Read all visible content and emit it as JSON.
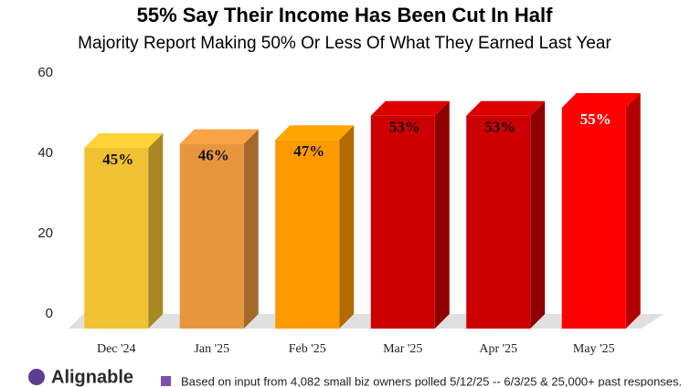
{
  "chart_data": {
    "type": "bar3d",
    "title": "55% Say Their Income Has Been Cut In Half",
    "subtitle": "Majority Report Making 50% Or Less Of What They Earned Last Year",
    "categories": [
      "Dec '24",
      "Jan '25",
      "Feb '25",
      "Mar '25",
      "Apr '25",
      "May '25"
    ],
    "values": [
      45,
      46,
      47,
      53,
      53,
      55
    ],
    "value_labels": [
      "45%",
      "46%",
      "47%",
      "53%",
      "53%",
      "55%"
    ],
    "colors": [
      "#f0c233",
      "#e8963e",
      "#ff9900",
      "#cc0000",
      "#cc0000",
      "#ff0000"
    ],
    "ylim": [
      0,
      60
    ],
    "yticks": [
      0,
      20,
      40,
      60
    ],
    "grid": false,
    "logo": "Alignable",
    "note": "Based on input from 4,082 small biz owners polled 5/12/25 -- 6/3/25 & 25,000+ past responses.",
    "note_color": "#7b52ab"
  }
}
